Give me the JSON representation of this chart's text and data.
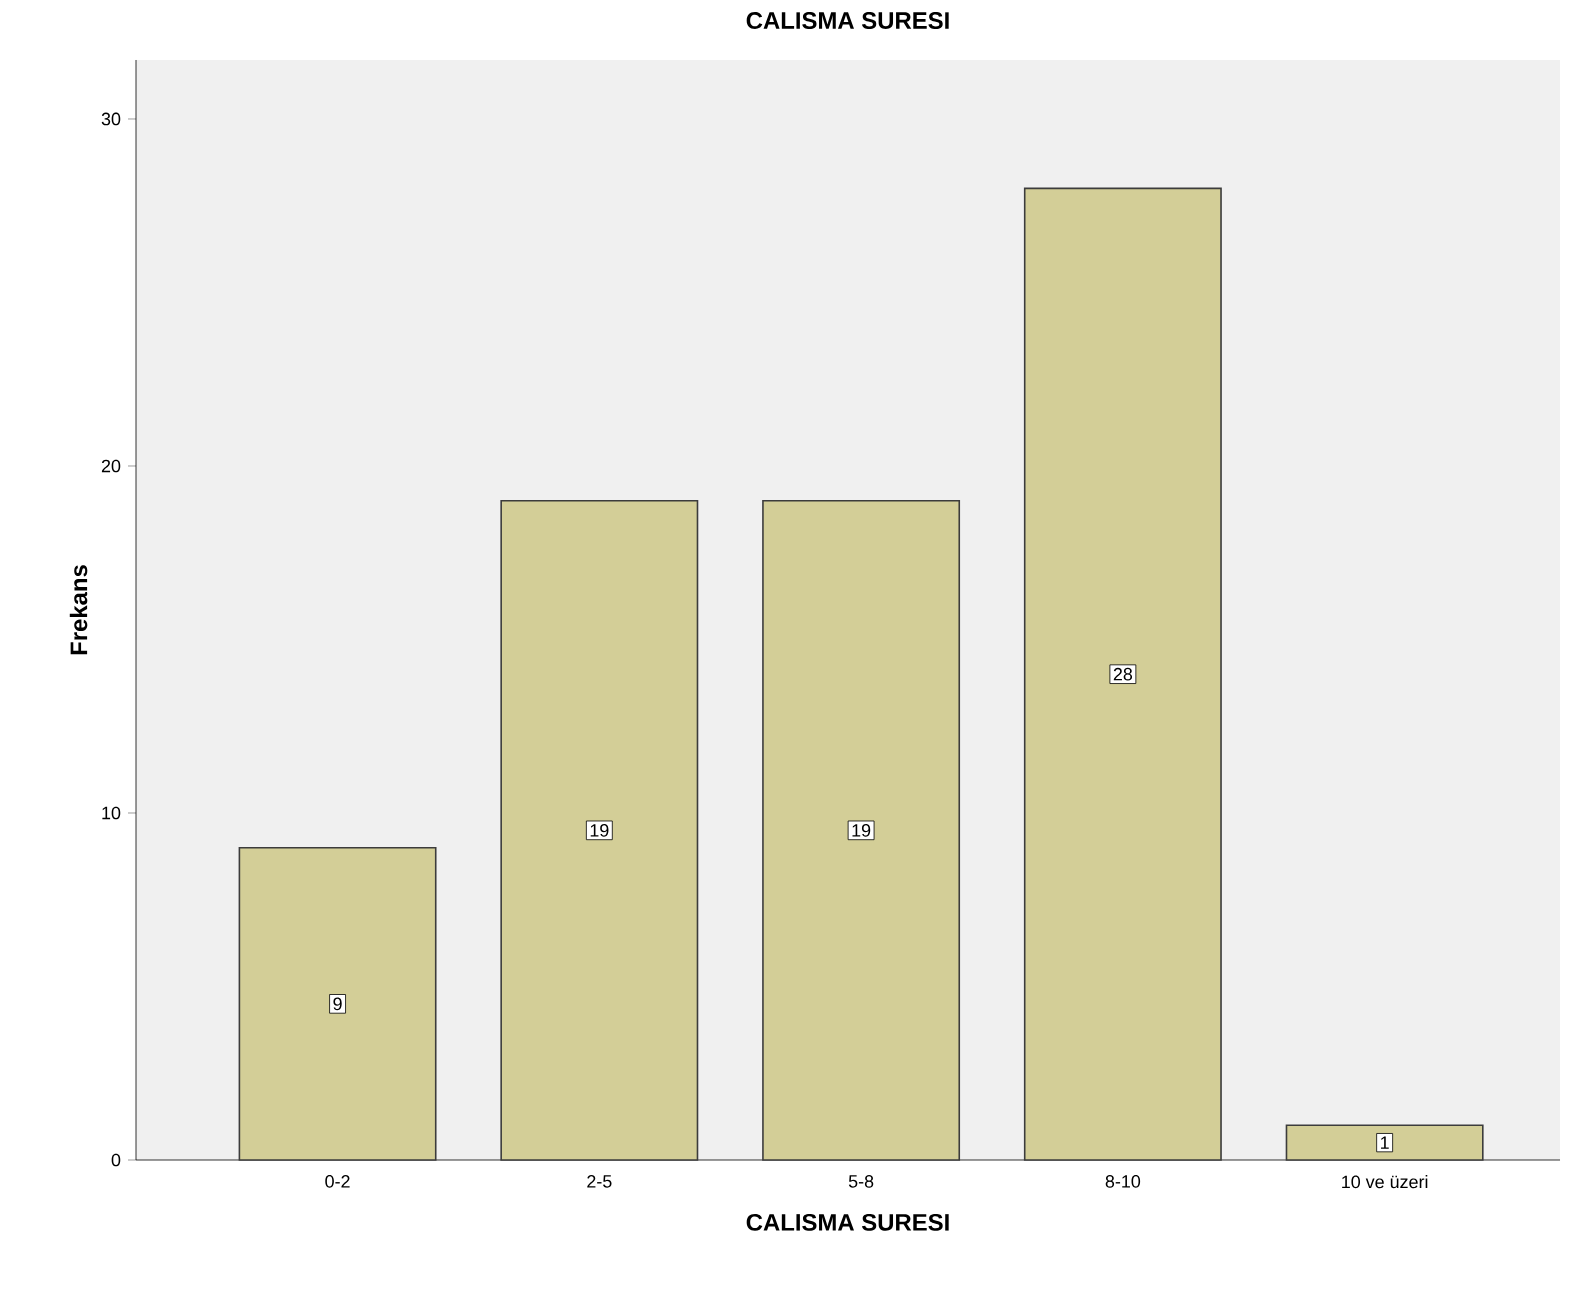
{
  "chart_data": {
    "type": "bar",
    "title": "CALISMA SURESI",
    "xlabel": "CALISMA SURESI",
    "ylabel": "Frekans",
    "categories": [
      "0-2",
      "2-5",
      "5-8",
      "8-10",
      "10 ve üzeri"
    ],
    "values": [
      9,
      19,
      19,
      28,
      1
    ],
    "color": "#d3ce97",
    "ylim": [
      0,
      31.7
    ],
    "yticks": [
      0,
      10,
      20,
      30
    ],
    "data_labels": true
  }
}
